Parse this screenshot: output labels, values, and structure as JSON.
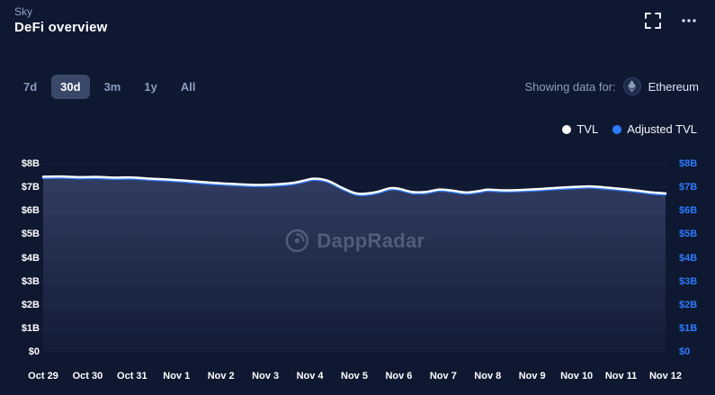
{
  "header": {
    "breadcrumb": "Sky",
    "title": "DeFi overview"
  },
  "timeranges": {
    "options": [
      "7d",
      "30d",
      "3m",
      "1y",
      "All"
    ],
    "selected": "30d"
  },
  "network_selector": {
    "label": "Showing data for:",
    "value": "Ethereum",
    "icon": "ethereum-icon"
  },
  "legend": {
    "items": [
      {
        "label": "TVL",
        "color": "#ffffff"
      },
      {
        "label": "Adjusted TVL",
        "color": "#2e7bff"
      }
    ]
  },
  "watermark": {
    "text": "DappRadar"
  },
  "colors": {
    "background": "#0e1831",
    "accent_blue": "#2e7bff",
    "selected_tab_bg": "#3a4868",
    "muted_text": "#8a9cc0",
    "area_fill_top": "rgba(122,136,200,0.32)",
    "area_fill_bottom": "rgba(122,136,200,0.03)"
  },
  "chart_data": {
    "type": "area",
    "title": "DeFi overview TVL (30d view, Ethereum)",
    "x_tick_labels": [
      "Oct 29",
      "Oct 30",
      "Oct 31",
      "Nov 1",
      "Nov 2",
      "Nov 3",
      "Nov 4",
      "Nov 5",
      "Nov 6",
      "Nov 7",
      "Nov 8",
      "Nov 9",
      "Nov 10",
      "Nov 11",
      "Nov 12"
    ],
    "y_tick_labels_left": [
      "$8B",
      "$7B",
      "$6B",
      "$5B",
      "$4B",
      "$3B",
      "$2B",
      "$1B",
      "$0"
    ],
    "y_tick_labels_right": [
      "$8B",
      "$7B",
      "$6B",
      "$5B",
      "$4B",
      "$3B",
      "$2B",
      "$1B",
      "$0"
    ],
    "ylim": [
      0,
      8
    ],
    "x_range_days": [
      0,
      14
    ],
    "grid": false,
    "legend_position": "top-right",
    "units": "USD billions",
    "series": [
      {
        "name": "TVL",
        "color": "#ffffff",
        "points": [
          [
            0,
            7.45
          ],
          [
            0.4,
            7.46
          ],
          [
            0.8,
            7.43
          ],
          [
            1.2,
            7.44
          ],
          [
            1.6,
            7.41
          ],
          [
            2,
            7.42
          ],
          [
            2.4,
            7.37
          ],
          [
            2.8,
            7.33
          ],
          [
            3.2,
            7.28
          ],
          [
            3.6,
            7.22
          ],
          [
            4,
            7.17
          ],
          [
            4.4,
            7.13
          ],
          [
            4.8,
            7.1
          ],
          [
            5.2,
            7.12
          ],
          [
            5.6,
            7.18
          ],
          [
            5.9,
            7.3
          ],
          [
            6.1,
            7.37
          ],
          [
            6.4,
            7.28
          ],
          [
            6.7,
            7.0
          ],
          [
            7,
            6.76
          ],
          [
            7.2,
            6.72
          ],
          [
            7.5,
            6.8
          ],
          [
            7.8,
            6.96
          ],
          [
            8,
            6.94
          ],
          [
            8.3,
            6.8
          ],
          [
            8.6,
            6.8
          ],
          [
            8.9,
            6.9
          ],
          [
            9.2,
            6.86
          ],
          [
            9.5,
            6.78
          ],
          [
            9.8,
            6.84
          ],
          [
            10,
            6.9
          ],
          [
            10.4,
            6.87
          ],
          [
            10.8,
            6.89
          ],
          [
            11.2,
            6.93
          ],
          [
            11.6,
            6.98
          ],
          [
            12,
            7.02
          ],
          [
            12.3,
            7.04
          ],
          [
            12.6,
            7.0
          ],
          [
            13,
            6.93
          ],
          [
            13.4,
            6.85
          ],
          [
            13.7,
            6.78
          ],
          [
            14,
            6.74
          ]
        ]
      },
      {
        "name": "Adjusted TVL",
        "color": "#2e7bff",
        "points": [
          [
            0,
            7.4
          ],
          [
            0.4,
            7.41
          ],
          [
            0.8,
            7.38
          ],
          [
            1.2,
            7.39
          ],
          [
            1.6,
            7.36
          ],
          [
            2,
            7.37
          ],
          [
            2.4,
            7.32
          ],
          [
            2.8,
            7.28
          ],
          [
            3.2,
            7.23
          ],
          [
            3.6,
            7.17
          ],
          [
            4,
            7.12
          ],
          [
            4.4,
            7.08
          ],
          [
            4.8,
            7.05
          ],
          [
            5.2,
            7.07
          ],
          [
            5.6,
            7.13
          ],
          [
            5.9,
            7.25
          ],
          [
            6.1,
            7.32
          ],
          [
            6.4,
            7.23
          ],
          [
            6.7,
            6.95
          ],
          [
            7,
            6.71
          ],
          [
            7.2,
            6.67
          ],
          [
            7.5,
            6.75
          ],
          [
            7.8,
            6.91
          ],
          [
            8,
            6.89
          ],
          [
            8.3,
            6.75
          ],
          [
            8.6,
            6.75
          ],
          [
            8.9,
            6.85
          ],
          [
            9.2,
            6.81
          ],
          [
            9.5,
            6.73
          ],
          [
            9.8,
            6.79
          ],
          [
            10,
            6.85
          ],
          [
            10.4,
            6.82
          ],
          [
            10.8,
            6.84
          ],
          [
            11.2,
            6.88
          ],
          [
            11.6,
            6.93
          ],
          [
            12,
            6.97
          ],
          [
            12.3,
            6.99
          ],
          [
            12.6,
            6.95
          ],
          [
            13,
            6.88
          ],
          [
            13.4,
            6.8
          ],
          [
            13.7,
            6.73
          ],
          [
            14,
            6.69
          ]
        ]
      }
    ]
  }
}
